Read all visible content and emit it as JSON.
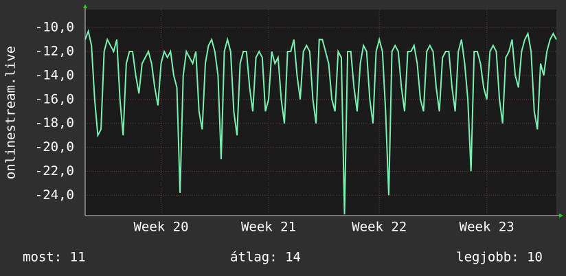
{
  "chart_data": {
    "type": "line",
    "ylabel": "onlinestream.live",
    "series": [
      {
        "name": null,
        "color": "#7cf0b0",
        "values": [
          -11,
          -10.3,
          -11.5,
          -16,
          -19,
          -18.5,
          -12,
          -11,
          -11.5,
          -12,
          -11,
          -16,
          -19,
          -13,
          -12,
          -12,
          -14,
          -15.5,
          -13,
          -12.5,
          -12,
          -13,
          -15,
          -16.5,
          -13,
          -12,
          -12.5,
          -12,
          -14,
          -15,
          -23.8,
          -14,
          -12,
          -12.5,
          -13,
          -12,
          -17,
          -18.5,
          -13,
          -11.5,
          -11,
          -12,
          -14,
          -21,
          -12,
          -11,
          -12,
          -17,
          -19,
          -13,
          -12,
          -12,
          -15,
          -17,
          -12.5,
          -12,
          -12.5,
          -17,
          -16,
          -12,
          -13,
          -12.5,
          -16,
          -18,
          -12,
          -12,
          -11,
          -14,
          -16,
          -12,
          -11.5,
          -12,
          -16,
          -18,
          -11,
          -11,
          -12,
          -13,
          -16,
          -17,
          -12,
          -12.5,
          -25.6,
          -12,
          -12,
          -15,
          -17,
          -13,
          -11.5,
          -12,
          -16,
          -18,
          -12,
          -11,
          -12,
          -17,
          -24,
          -12,
          -11.5,
          -12,
          -15,
          -17,
          -12,
          -12,
          -11.5,
          -13,
          -16,
          -17,
          -12,
          -11.5,
          -12,
          -15,
          -17,
          -12.5,
          -12,
          -12,
          -15,
          -17,
          -12,
          -11,
          -13,
          -16,
          -22,
          -12,
          -12,
          -13,
          -15,
          -16,
          -12,
          -11.5,
          -12,
          -16,
          -18,
          -12.5,
          -12,
          -11,
          -14,
          -15,
          -12,
          -11,
          -10.5,
          -12,
          -17,
          -18.5,
          -13,
          -14,
          -12,
          -11,
          -10.5,
          -11
        ]
      }
    ],
    "xlim": [
      0,
      149
    ],
    "xticks": [
      {
        "value": 24,
        "label": "Week 20"
      },
      {
        "value": 58,
        "label": "Week 21"
      },
      {
        "value": 93,
        "label": "Week 22"
      },
      {
        "value": 127,
        "label": "Week 23"
      }
    ],
    "ylim": [
      -25.7,
      -8.5
    ],
    "yticks": [
      {
        "value": -10,
        "label": "-10,0"
      },
      {
        "value": -12,
        "label": "-12,0"
      },
      {
        "value": -14,
        "label": "-14,0"
      },
      {
        "value": -16,
        "label": "-16,0"
      },
      {
        "value": -18,
        "label": "-18,0"
      },
      {
        "value": -20,
        "label": "-20,0"
      },
      {
        "value": -22,
        "label": "-22,0"
      },
      {
        "value": -24,
        "label": "-24,0"
      }
    ],
    "grid": true,
    "footer": [
      "most: 11",
      "átlag: 14",
      "legjobb: 10"
    ]
  }
}
